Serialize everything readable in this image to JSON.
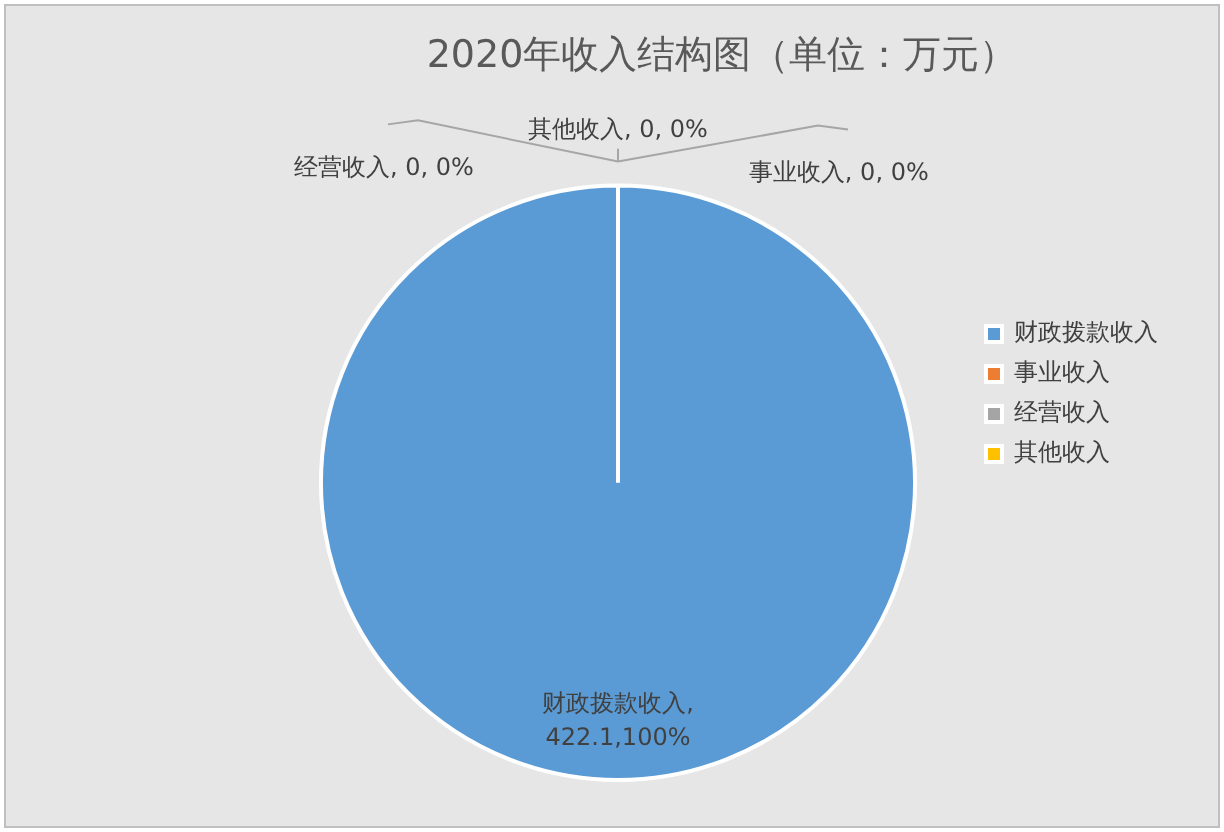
{
  "chart_data": {
    "type": "pie",
    "title": "2020年收入结构图（单位：万元）",
    "categories": [
      "财政拨款收入",
      "事业收入",
      "经营收入",
      "其他收入"
    ],
    "values": [
      100,
      0,
      0,
      0
    ],
    "colors": [
      "#5b9bd5",
      "#ed7d31",
      "#a5a5a5",
      "#ffc000"
    ],
    "value_labels": [
      "财政拨款收入, 422.1,100%",
      "事业收入, 0, 0%",
      "经营收入, 0, 0%",
      "其他收入, 0, 0%"
    ],
    "legend": "right"
  }
}
